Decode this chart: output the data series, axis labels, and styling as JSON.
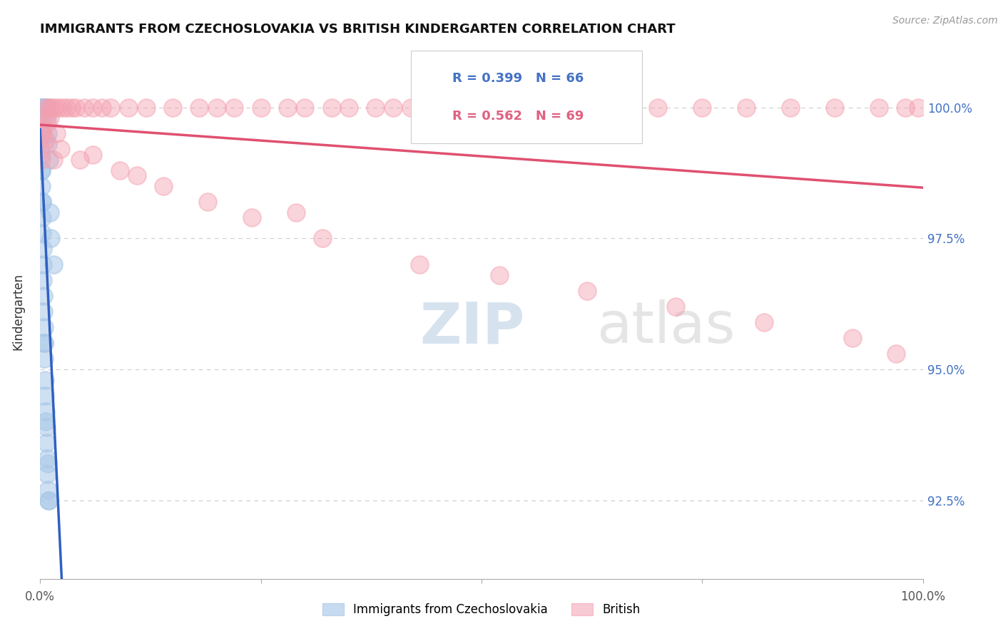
{
  "title": "IMMIGRANTS FROM CZECHOSLOVAKIA VS BRITISH KINDERGARTEN CORRELATION CHART",
  "source": "Source: ZipAtlas.com",
  "ylabel": "Kindergarten",
  "ytick_labels": [
    "92.5%",
    "95.0%",
    "97.5%",
    "100.0%"
  ],
  "ytick_values": [
    92.5,
    95.0,
    97.5,
    100.0
  ],
  "xmin": 0.0,
  "xmax": 100.0,
  "ymin": 91.0,
  "ymax": 101.2,
  "legend_blue_R": "R = 0.399",
  "legend_blue_N": "N = 66",
  "legend_pink_R": "R = 0.562",
  "legend_pink_N": "N = 69",
  "legend_blue_label": "Immigrants from Czechoslovakia",
  "legend_pink_label": "British",
  "blue_color": "#a8c8e8",
  "pink_color": "#f4a0b0",
  "blue_line_color": "#3060c0",
  "pink_line_color": "#e05070",
  "blue_scatter_x": [
    0.05,
    0.08,
    0.1,
    0.12,
    0.15,
    0.18,
    0.2,
    0.22,
    0.25,
    0.28,
    0.3,
    0.32,
    0.35,
    0.38,
    0.4,
    0.42,
    0.45,
    0.48,
    0.5,
    0.52,
    0.55,
    0.58,
    0.6,
    0.65,
    0.7,
    0.75,
    0.8,
    0.85,
    0.9,
    1.0,
    0.05,
    0.07,
    0.09,
    0.11,
    0.13,
    0.16,
    0.19,
    0.21,
    0.24,
    0.27,
    0.29,
    0.33,
    0.36,
    0.39,
    0.43,
    0.46,
    0.49,
    0.53,
    0.56,
    0.62,
    0.68,
    0.72,
    0.78,
    0.82,
    0.88,
    0.92,
    0.95,
    1.1,
    1.2,
    1.5,
    0.06,
    0.14,
    0.23,
    0.44,
    0.66,
    0.85
  ],
  "blue_scatter_y": [
    100.0,
    100.0,
    100.0,
    100.0,
    100.0,
    100.0,
    100.0,
    100.0,
    100.0,
    100.0,
    100.0,
    100.0,
    100.0,
    100.0,
    100.0,
    100.0,
    100.0,
    100.0,
    100.0,
    100.0,
    100.0,
    100.0,
    100.0,
    100.0,
    100.0,
    100.0,
    99.8,
    99.5,
    99.3,
    99.0,
    99.8,
    99.6,
    99.4,
    99.1,
    98.8,
    98.5,
    98.2,
    97.9,
    97.6,
    97.3,
    97.0,
    96.7,
    96.4,
    96.1,
    95.8,
    95.5,
    95.2,
    94.8,
    94.5,
    94.2,
    93.9,
    93.6,
    93.3,
    93.0,
    92.7,
    92.5,
    92.5,
    98.0,
    97.5,
    97.0,
    99.5,
    98.8,
    98.2,
    95.5,
    94.0,
    93.2
  ],
  "pink_scatter_x": [
    0.1,
    0.2,
    0.3,
    0.5,
    0.7,
    1.0,
    1.3,
    1.6,
    2.0,
    2.5,
    3.0,
    3.5,
    4.0,
    5.0,
    6.0,
    7.0,
    8.0,
    10.0,
    12.0,
    15.0,
    18.0,
    20.0,
    22.0,
    25.0,
    28.0,
    30.0,
    33.0,
    35.0,
    38.0,
    40.0,
    42.0,
    45.0,
    47.0,
    50.0,
    55.0,
    60.0,
    65.0,
    70.0,
    75.0,
    80.0,
    85.0,
    90.0,
    95.0,
    98.0,
    99.5,
    0.15,
    0.4,
    0.8,
    1.1,
    1.8,
    2.3,
    4.5,
    9.0,
    14.0,
    19.0,
    24.0,
    32.0,
    43.0,
    52.0,
    62.0,
    72.0,
    82.0,
    92.0,
    97.0,
    0.6,
    1.5,
    6.0,
    11.0,
    29.0
  ],
  "pink_scatter_y": [
    99.2,
    99.5,
    99.6,
    99.8,
    100.0,
    100.0,
    100.0,
    100.0,
    100.0,
    100.0,
    100.0,
    100.0,
    100.0,
    100.0,
    100.0,
    100.0,
    100.0,
    100.0,
    100.0,
    100.0,
    100.0,
    100.0,
    100.0,
    100.0,
    100.0,
    100.0,
    100.0,
    100.0,
    100.0,
    100.0,
    100.0,
    100.0,
    100.0,
    100.0,
    100.0,
    100.0,
    100.0,
    100.0,
    100.0,
    100.0,
    100.0,
    100.0,
    100.0,
    100.0,
    100.0,
    99.0,
    99.3,
    99.7,
    99.8,
    99.5,
    99.2,
    99.0,
    98.8,
    98.5,
    98.2,
    97.9,
    97.5,
    97.0,
    96.8,
    96.5,
    96.2,
    95.9,
    95.6,
    95.3,
    99.4,
    99.0,
    99.1,
    98.7,
    98.0
  ]
}
